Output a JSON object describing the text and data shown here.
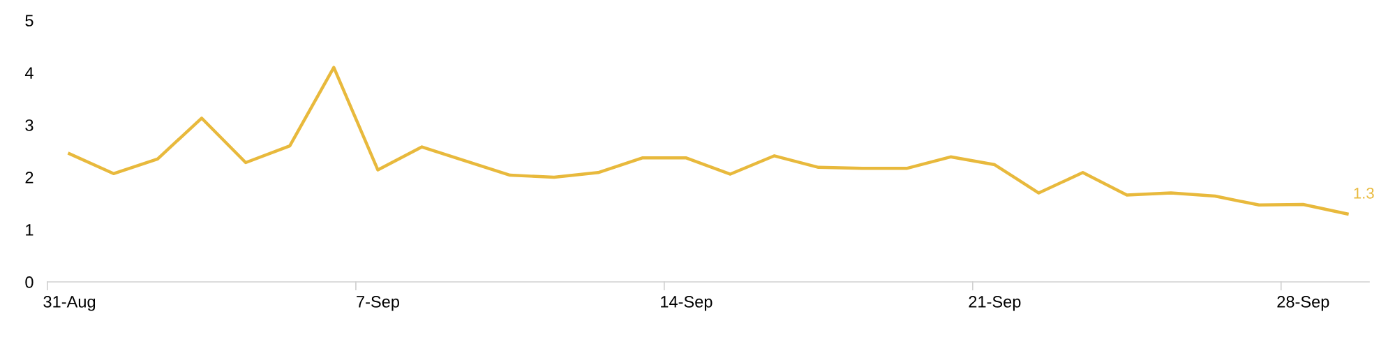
{
  "chart_data": {
    "type": "line",
    "categories": [
      "31-Aug",
      null,
      null,
      null,
      null,
      null,
      null,
      "7-Sep",
      null,
      null,
      null,
      null,
      null,
      null,
      "14-Sep",
      null,
      null,
      null,
      null,
      null,
      null,
      "21-Sep",
      null,
      null,
      null,
      null,
      null,
      null,
      "28-Sep",
      null
    ],
    "series": [
      {
        "color": "#e8b93c",
        "values": [
          2.45,
          2.07,
          2.35,
          3.13,
          2.28,
          2.6,
          4.1,
          2.14,
          2.58,
          2.31,
          2.04,
          2.0,
          2.09,
          2.37,
          2.37,
          2.06,
          2.41,
          2.19,
          2.17,
          2.17,
          2.39,
          2.24,
          1.7,
          2.09,
          1.66,
          1.7,
          1.64,
          1.47,
          1.48,
          1.3
        ],
        "value_labels": [
          null,
          null,
          null,
          null,
          null,
          null,
          null,
          null,
          null,
          null,
          null,
          null,
          null,
          null,
          null,
          null,
          null,
          null,
          null,
          null,
          null,
          null,
          null,
          null,
          null,
          null,
          null,
          null,
          null,
          "1.3"
        ]
      }
    ],
    "ylim": [
      0,
      5
    ],
    "yticks": [
      0,
      1,
      2,
      3,
      4,
      5
    ],
    "grid": false,
    "marker": "none",
    "line_style": "solid"
  }
}
